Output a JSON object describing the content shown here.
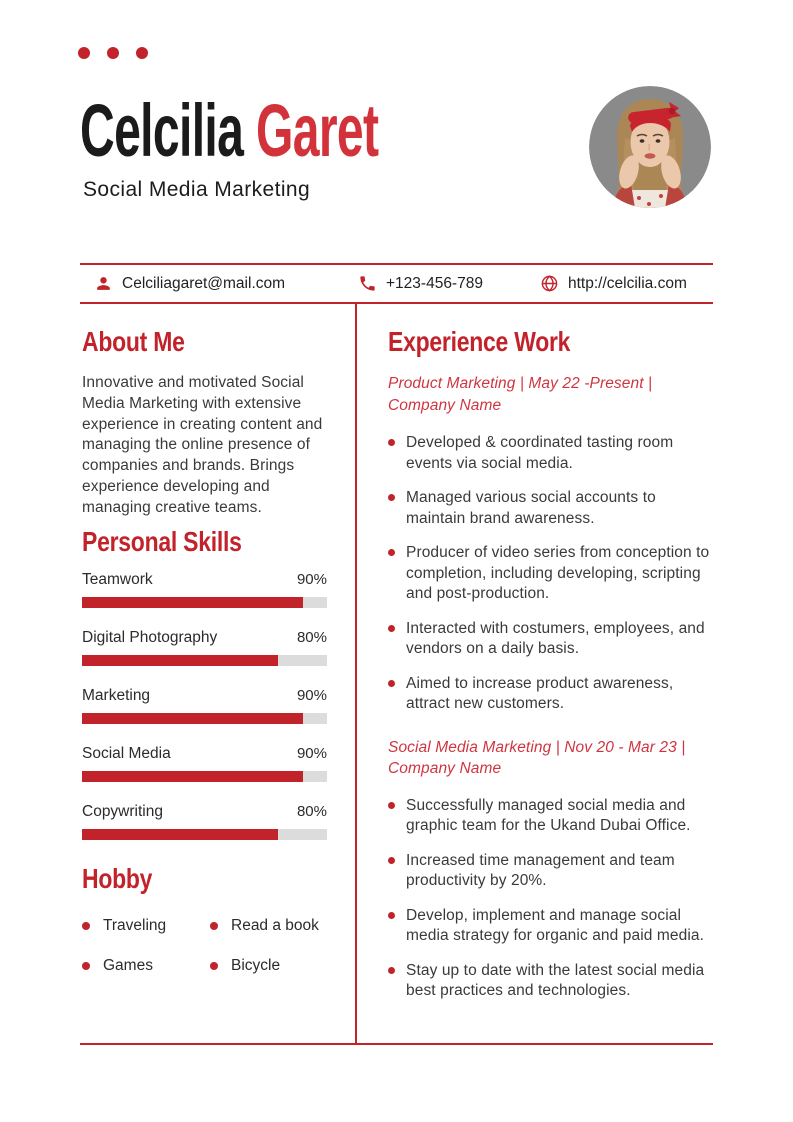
{
  "colors": {
    "accent": "#C2232B",
    "name_red": "#D2333B",
    "job_title_red": "#CF3540",
    "bar_track": "#DCDCDC",
    "photo_background": "#8A8A8A"
  },
  "header": {
    "first_name": "Celcilia",
    "last_name": "Garet",
    "subtitle": "Social Media Marketing"
  },
  "contact": {
    "email": {
      "icon": "person-icon",
      "text": "Celciliagaret@mail.com"
    },
    "phone": {
      "icon": "phone-icon",
      "text": "+123-456-789"
    },
    "website": {
      "icon": "globe-icon",
      "text": "http://celcilia.com"
    }
  },
  "about": {
    "title": "About Me",
    "body": "Innovative and motivated Social Media Marketing with extensive experience in creating content and managing the online presence of companies and brands. Brings experience developing and managing creative teams."
  },
  "skills": {
    "title": "Personal Skills",
    "items": [
      {
        "label": "Teamwork",
        "percent": 90,
        "percent_label": "90%"
      },
      {
        "label": "Digital Photography",
        "percent": 80,
        "percent_label": "80%"
      },
      {
        "label": "Marketing",
        "percent": 90,
        "percent_label": "90%"
      },
      {
        "label": "Social Media",
        "percent": 90,
        "percent_label": "90%"
      },
      {
        "label": "Copywriting",
        "percent": 80,
        "percent_label": "80%"
      }
    ]
  },
  "hobby": {
    "title": "Hobby",
    "items": [
      "Traveling",
      "Read a book",
      "Games",
      "Bicycle"
    ]
  },
  "experience": {
    "title": "Experience Work",
    "jobs": [
      {
        "title_line1": "Product Marketing | May 22 -Present |",
        "title_line2": "Company Name",
        "bullets": [
          "Developed & coordinated tasting room events via social media.",
          "Managed various social accounts to maintain brand awareness.",
          "Producer of video series from conception to completion, including developing, scripting and post-production.",
          "Interacted with costumers, employees, and vendors on a daily basis.",
          "Aimed to increase product awareness, attract new customers."
        ]
      },
      {
        "title_line1": "Social Media Marketing | Nov 20 - Mar 23 |",
        "title_line2": "Company Name",
        "bullets": [
          "Successfully managed social media and graphic team for the Ukand Dubai Office.",
          "Increased time management and team productivity by 20%.",
          "Develop, implement and manage social media strategy for organic and paid media.",
          "Stay up to date with the latest social media best practices and technologies."
        ]
      }
    ]
  }
}
